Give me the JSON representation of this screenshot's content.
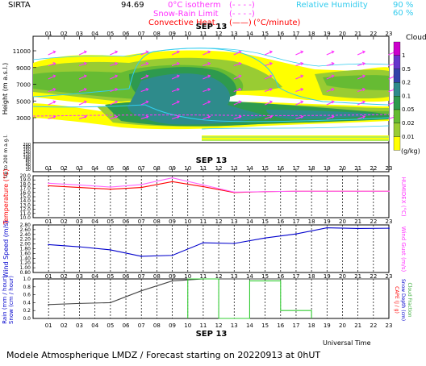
{
  "header": {
    "station": "SIRTA",
    "coords": "94.69",
    "legend_clouds_label": "Clouds",
    "legend_units": "(g/kg)",
    "legend_ticks": [
      "1",
      "0.5",
      "0.2",
      "0.1",
      "0.05",
      "0.02",
      "0.01"
    ],
    "line_legend": [
      {
        "label": "0°C isotherm",
        "sample": "(- - - -)",
        "color": "#ff33ff"
      },
      {
        "label": "Snow-Rain Limit",
        "sample": "(- - - -)",
        "color": "#ff33ff"
      },
      {
        "label": "Convective Heat.",
        "sample": "(——)",
        "suffix": "(°C/minute)",
        "color": "#ff0000"
      }
    ],
    "rh_legend": {
      "label": "Relative Humidity",
      "values": [
        "90 %",
        "60 %"
      ],
      "color": "#33ccee"
    }
  },
  "hours": [
    "01",
    "02",
    "03",
    "04",
    "05",
    "06",
    "07",
    "08",
    "09",
    "10",
    "11",
    "12",
    "13",
    "14",
    "15",
    "16",
    "17",
    "18",
    "19",
    "20",
    "21",
    "22",
    "23"
  ],
  "date_label": "SEP 13",
  "bottom_axis_title": "Universal Time",
  "footer": "Modele Atmospherique LMDZ / Forecast starting on 20220913 at 0hUT",
  "chart_data": [
    {
      "type": "heatmap",
      "title": "",
      "ylabel": "Height (m a.s.l.)",
      "ylabel2": "Up to 200 m a.g.l.",
      "yticks_upper": [
        11000,
        9000,
        7000,
        5000,
        3000
      ],
      "yticks_lower": [
        200,
        180,
        160,
        140,
        120,
        100,
        80,
        60,
        40,
        20,
        10
      ],
      "legend_colors": [
        "#cc00cc",
        "#6633cc",
        "#3344aa",
        "#2e8b8b",
        "#2e9a4e",
        "#66bb33",
        "#99cc33",
        "#ffff00"
      ],
      "legend_title": "Clouds (g/kg)"
    },
    {
      "type": "line",
      "ylabel": "Temperature (°C)",
      "ylabel2": "HUMIDEX (°C)",
      "yticks": [
        20.0,
        19.0,
        18.0,
        17.0,
        16.0,
        15.0,
        14.0,
        13.0,
        12.0,
        11.0,
        10.0
      ],
      "ylim": [
        10,
        20
      ],
      "x": [
        1,
        3,
        5,
        7,
        9,
        11,
        13,
        15,
        17,
        19,
        21,
        23
      ],
      "series": [
        {
          "color": "#ff0000",
          "values": [
            17.6,
            17.2,
            16.8,
            17.2,
            18.6,
            17.4,
            16.0,
            16.2,
            16.3,
            16.3,
            16.3,
            16.3
          ]
        },
        {
          "color": "#ff66ff",
          "values": [
            18.2,
            17.8,
            17.3,
            17.9,
            19.5,
            17.8,
            16.1,
            16.2,
            16.3,
            16.3,
            16.3,
            16.3
          ]
        }
      ]
    },
    {
      "type": "line",
      "ylabel": "Wind Speed (m/s)",
      "ylabel2": "Wind Gust (m/s)",
      "yticks": [
        2.8,
        2.6,
        2.4,
        2.2,
        2.0,
        1.8,
        1.6,
        1.4,
        1.2,
        1.0,
        0.8
      ],
      "ylim": [
        0.8,
        2.8
      ],
      "x": [
        1,
        3,
        5,
        7,
        9,
        11,
        13,
        15,
        17,
        19,
        21,
        23
      ],
      "series": [
        {
          "color": "#0000cc",
          "values": [
            1.97,
            1.88,
            1.75,
            1.48,
            1.52,
            2.05,
            2.02,
            2.25,
            2.42,
            2.68,
            2.65,
            2.66
          ]
        }
      ]
    },
    {
      "type": "line",
      "ylabel": "Rain (mm / hour)",
      "ylabel2": "Snow (cm / hour)",
      "ylabel3": "CAPE (J / g)",
      "ylabel4": "Snow Depth (cm)",
      "ylabel5": "Cloud Fraction",
      "yticks": [
        1.0,
        0.8,
        0.6,
        0.4,
        0.2,
        0.0
      ],
      "ylim": [
        0,
        1
      ],
      "x": [
        1,
        3,
        5,
        7,
        9,
        11,
        13,
        15,
        17,
        19,
        21,
        23
      ],
      "series": [
        {
          "color": "#444444",
          "values": [
            0.35,
            0.38,
            0.4,
            0.7,
            0.95,
            1.0,
            1.0,
            1.0,
            1.0,
            1.0,
            1.0,
            1.0
          ]
        },
        {
          "color": "#33cc33",
          "steps": [
            [
              10,
              0.0
            ],
            [
              10,
              1.0
            ],
            [
              12,
              1.0
            ],
            [
              12,
              0.0
            ],
            [
              14,
              0.0
            ],
            [
              14,
              0.95
            ],
            [
              16,
              0.95
            ],
            [
              16,
              0.2
            ],
            [
              18,
              0.2
            ],
            [
              18,
              0.0
            ]
          ]
        }
      ]
    }
  ]
}
